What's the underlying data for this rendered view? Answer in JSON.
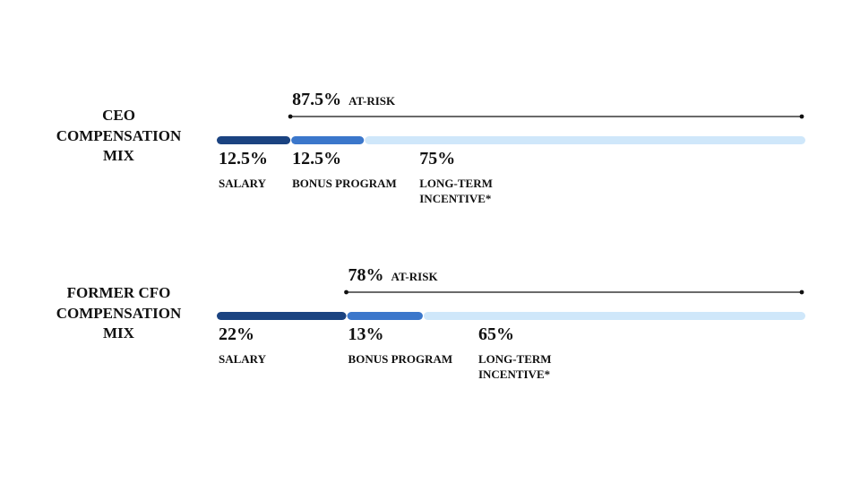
{
  "colors": {
    "salary": "#1b4381",
    "bonus": "#3b77cb",
    "long_term": "#cfe7fa",
    "line": "#111111"
  },
  "chart_data": [
    {
      "type": "bar",
      "orientation": "horizontal",
      "stacked": true,
      "title": "CEO\nCOMPENSATION\nMIX",
      "categories": [
        "SALARY",
        "BONUS PROGRAM",
        "LONG-TERM\nINCENTIVE*"
      ],
      "values": [
        12.5,
        12.5,
        75
      ],
      "value_labels": [
        "12.5%",
        "12.5%",
        "75%"
      ],
      "xlim": [
        0,
        100
      ],
      "at_risk": {
        "value": 87.5,
        "value_label": "87.5%",
        "label": "AT-RISK"
      }
    },
    {
      "type": "bar",
      "orientation": "horizontal",
      "stacked": true,
      "title": "FORMER CFO\nCOMPENSATION\nMIX",
      "categories": [
        "SALARY",
        "BONUS PROGRAM",
        "LONG-TERM\nINCENTIVE*"
      ],
      "values": [
        22,
        13,
        65
      ],
      "value_labels": [
        "22%",
        "13%",
        "65%"
      ],
      "xlim": [
        0,
        100
      ],
      "at_risk": {
        "value": 78,
        "value_label": "78%",
        "label": "AT-RISK"
      }
    }
  ]
}
